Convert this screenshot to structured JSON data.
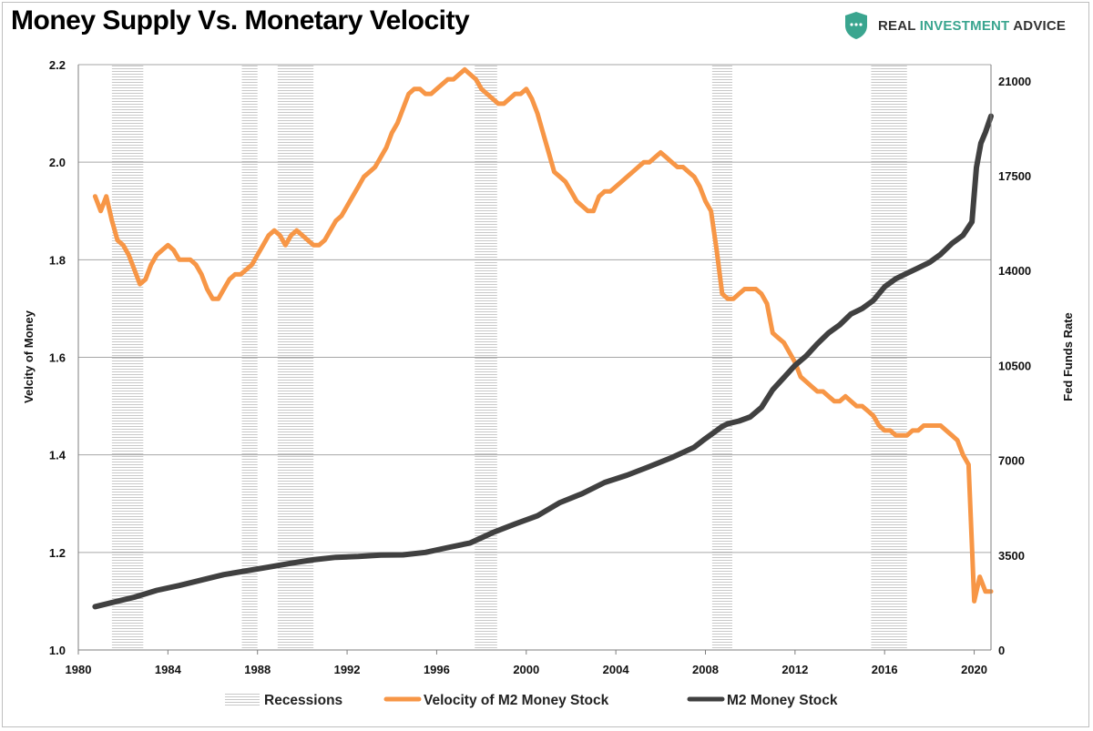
{
  "title": "Money Supply Vs. Monetary Velocity",
  "logo": {
    "word1": "REAL",
    "word2": "INVESTMENT",
    "word3": "ADVICE",
    "icon": "shield-icon"
  },
  "chart_data": {
    "type": "line",
    "title": "Money Supply Vs. Monetary Velocity",
    "ylabel": "Velcity of Money",
    "y2label": "Fed Funds Rate",
    "xlim": [
      1980,
      2020.75
    ],
    "ylim": [
      1.0,
      2.2
    ],
    "y2lim": [
      0,
      21600
    ],
    "xticks": [
      "1980",
      "1984",
      "1988",
      "1992",
      "1996",
      "2000",
      "2004",
      "2008",
      "2012",
      "2016",
      "2020"
    ],
    "yticks": [
      "1.0",
      "1.2",
      "1.4",
      "1.6",
      "1.8",
      "2.0",
      "2.2"
    ],
    "y2ticks": [
      "0",
      "3500",
      "7000",
      "10500",
      "14000",
      "17500",
      "21000"
    ],
    "grid": true,
    "legend_position": "bottom",
    "recessions": [
      [
        1981.5,
        1982.9
      ],
      [
        1987.3,
        1988.0
      ],
      [
        1988.9,
        1990.5
      ],
      [
        1997.7,
        1998.7
      ],
      [
        2008.3,
        2009.2
      ],
      [
        2015.4,
        2017.0
      ]
    ],
    "series": [
      {
        "name": "Velocity of M2 Money Stock",
        "axis": "left",
        "color": "#f79646",
        "x": [
          1980.75,
          1981.0,
          1981.25,
          1981.5,
          1981.75,
          1982.0,
          1982.25,
          1982.5,
          1982.75,
          1983.0,
          1983.25,
          1983.5,
          1983.75,
          1984.0,
          1984.25,
          1984.5,
          1984.75,
          1985.0,
          1985.25,
          1985.5,
          1985.75,
          1986.0,
          1986.25,
          1986.5,
          1986.75,
          1987.0,
          1987.25,
          1987.5,
          1987.75,
          1988.0,
          1988.25,
          1988.5,
          1988.75,
          1989.0,
          1989.25,
          1989.5,
          1989.75,
          1990.0,
          1990.25,
          1990.5,
          1990.75,
          1991.0,
          1991.25,
          1991.5,
          1991.75,
          1992.0,
          1992.25,
          1992.5,
          1992.75,
          1993.0,
          1993.25,
          1993.5,
          1993.75,
          1994.0,
          1994.25,
          1994.5,
          1994.75,
          1995.0,
          1995.25,
          1995.5,
          1995.75,
          1996.0,
          1996.25,
          1996.5,
          1996.75,
          1997.0,
          1997.25,
          1997.5,
          1997.75,
          1998.0,
          1998.25,
          1998.5,
          1998.75,
          1999.0,
          1999.25,
          1999.5,
          1999.75,
          2000.0,
          2000.25,
          2000.5,
          2000.75,
          2001.0,
          2001.25,
          2001.5,
          2001.75,
          2002.0,
          2002.25,
          2002.5,
          2002.75,
          2003.0,
          2003.25,
          2003.5,
          2003.75,
          2004.0,
          2004.25,
          2004.5,
          2004.75,
          2005.0,
          2005.25,
          2005.5,
          2005.75,
          2006.0,
          2006.25,
          2006.5,
          2006.75,
          2007.0,
          2007.25,
          2007.5,
          2007.75,
          2008.0,
          2008.25,
          2008.5,
          2008.75,
          2009.0,
          2009.25,
          2009.5,
          2009.75,
          2010.0,
          2010.25,
          2010.5,
          2010.75,
          2011.0,
          2011.25,
          2011.5,
          2011.75,
          2012.0,
          2012.25,
          2012.5,
          2012.75,
          2013.0,
          2013.25,
          2013.5,
          2013.75,
          2014.0,
          2014.25,
          2014.5,
          2014.75,
          2015.0,
          2015.25,
          2015.5,
          2015.75,
          2016.0,
          2016.25,
          2016.5,
          2016.75,
          2017.0,
          2017.25,
          2017.5,
          2017.75,
          2018.0,
          2018.25,
          2018.5,
          2018.75,
          2019.0,
          2019.25,
          2019.5,
          2019.75,
          2020.0,
          2020.25,
          2020.5,
          2020.75
        ],
        "values": [
          1.93,
          1.9,
          1.93,
          1.88,
          1.84,
          1.83,
          1.81,
          1.78,
          1.75,
          1.76,
          1.79,
          1.81,
          1.82,
          1.83,
          1.82,
          1.8,
          1.8,
          1.8,
          1.79,
          1.77,
          1.74,
          1.72,
          1.72,
          1.74,
          1.76,
          1.77,
          1.77,
          1.78,
          1.79,
          1.81,
          1.83,
          1.85,
          1.86,
          1.85,
          1.83,
          1.85,
          1.86,
          1.85,
          1.84,
          1.83,
          1.83,
          1.84,
          1.86,
          1.88,
          1.89,
          1.91,
          1.93,
          1.95,
          1.97,
          1.98,
          1.99,
          2.01,
          2.03,
          2.06,
          2.08,
          2.11,
          2.14,
          2.15,
          2.15,
          2.14,
          2.14,
          2.15,
          2.16,
          2.17,
          2.17,
          2.18,
          2.19,
          2.18,
          2.17,
          2.15,
          2.14,
          2.13,
          2.12,
          2.12,
          2.13,
          2.14,
          2.14,
          2.15,
          2.13,
          2.1,
          2.06,
          2.02,
          1.98,
          1.97,
          1.96,
          1.94,
          1.92,
          1.91,
          1.9,
          1.9,
          1.93,
          1.94,
          1.94,
          1.95,
          1.96,
          1.97,
          1.98,
          1.99,
          2.0,
          2.0,
          2.01,
          2.02,
          2.01,
          2.0,
          1.99,
          1.99,
          1.98,
          1.97,
          1.95,
          1.92,
          1.9,
          1.82,
          1.73,
          1.72,
          1.72,
          1.73,
          1.74,
          1.74,
          1.74,
          1.73,
          1.71,
          1.65,
          1.64,
          1.63,
          1.61,
          1.59,
          1.56,
          1.55,
          1.54,
          1.53,
          1.53,
          1.52,
          1.51,
          1.51,
          1.52,
          1.51,
          1.5,
          1.5,
          1.49,
          1.48,
          1.46,
          1.45,
          1.45,
          1.44,
          1.44,
          1.44,
          1.45,
          1.45,
          1.46,
          1.46,
          1.46,
          1.46,
          1.45,
          1.44,
          1.43,
          1.4,
          1.38,
          1.1,
          1.15,
          1.12,
          1.12
        ]
      },
      {
        "name": "M2 Money Stock",
        "axis": "right",
        "color": "#404040",
        "x": [
          1980.75,
          1981.5,
          1982.5,
          1983.5,
          1984.5,
          1985.5,
          1986.5,
          1987.5,
          1988.5,
          1989.5,
          1990.5,
          1991.5,
          1992.5,
          1993.5,
          1994.5,
          1995.5,
          1996.5,
          1997.5,
          1998.5,
          1999.5,
          2000.5,
          2001.5,
          2002.5,
          2003.5,
          2004.5,
          2005.5,
          2006.5,
          2007.5,
          2008.0,
          2008.5,
          2008.75,
          2009.0,
          2009.5,
          2010.0,
          2010.5,
          2011.0,
          2011.5,
          2012.0,
          2012.5,
          2013.0,
          2013.5,
          2014.0,
          2014.5,
          2015.0,
          2015.5,
          2016.0,
          2016.5,
          2017.0,
          2017.5,
          2018.0,
          2018.5,
          2019.0,
          2019.5,
          2019.9,
          2020.1,
          2020.3,
          2020.5,
          2020.75
        ],
        "values": [
          1600,
          1750,
          1950,
          2200,
          2380,
          2580,
          2780,
          2920,
          3060,
          3200,
          3330,
          3420,
          3450,
          3500,
          3510,
          3600,
          3780,
          3950,
          4330,
          4650,
          4950,
          5440,
          5770,
          6180,
          6450,
          6770,
          7100,
          7480,
          7800,
          8100,
          8250,
          8350,
          8450,
          8600,
          8950,
          9600,
          10050,
          10500,
          10850,
          11300,
          11700,
          12000,
          12400,
          12600,
          12900,
          13400,
          13700,
          13900,
          14100,
          14300,
          14600,
          15000,
          15300,
          15800,
          17800,
          18700,
          19100,
          19700
        ]
      }
    ]
  },
  "legend": [
    {
      "label": "Recessions",
      "swatch": "hatch"
    },
    {
      "label": "Velocity of M2 Money Stock",
      "swatch": "#f79646"
    },
    {
      "label": "M2 Money Stock",
      "swatch": "#404040"
    }
  ]
}
